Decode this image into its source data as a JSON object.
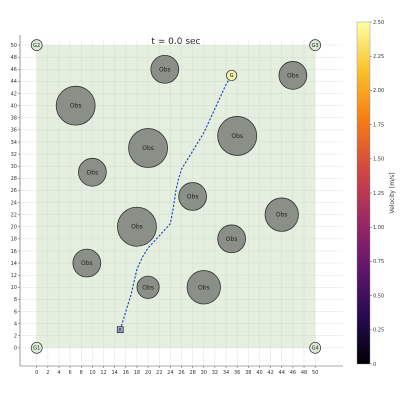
{
  "chart_data": {
    "type": "scatter",
    "title": "t = 0.0 sec",
    "xlabel": "",
    "ylabel": "",
    "xlim": [
      -3,
      55
    ],
    "ylim": [
      -3,
      52
    ],
    "xticks": [
      0,
      2,
      4,
      6,
      8,
      10,
      12,
      14,
      16,
      18,
      20,
      22,
      24,
      26,
      28,
      30,
      32,
      34,
      36,
      38,
      40,
      42,
      44,
      46,
      48,
      50
    ],
    "yticks": [
      0,
      2,
      4,
      6,
      8,
      10,
      12,
      14,
      16,
      18,
      20,
      22,
      24,
      26,
      28,
      30,
      32,
      34,
      36,
      38,
      40,
      42,
      44,
      46,
      48,
      50
    ],
    "grid": true,
    "region": {
      "x": [
        0,
        50
      ],
      "y": [
        0,
        50
      ],
      "color": "#e4efe0"
    },
    "obstacle_label": "Obs",
    "obstacles": [
      {
        "x": 23,
        "y": 46,
        "r": 2.5
      },
      {
        "x": 46,
        "y": 45,
        "r": 2.5
      },
      {
        "x": 7,
        "y": 40,
        "r": 3.5
      },
      {
        "x": 36,
        "y": 35,
        "r": 3.5
      },
      {
        "x": 20,
        "y": 33,
        "r": 3.5
      },
      {
        "x": 10,
        "y": 29,
        "r": 2.5
      },
      {
        "x": 28,
        "y": 25,
        "r": 2.5
      },
      {
        "x": 44,
        "y": 22,
        "r": 3.0
      },
      {
        "x": 18,
        "y": 20,
        "r": 3.5
      },
      {
        "x": 35,
        "y": 18,
        "r": 2.5
      },
      {
        "x": 9,
        "y": 14,
        "r": 2.5
      },
      {
        "x": 20,
        "y": 10,
        "r": 2.0
      },
      {
        "x": 30,
        "y": 10,
        "r": 3.0
      }
    ],
    "corners": [
      {
        "label": "G2",
        "x": 0,
        "y": 50
      },
      {
        "label": "G3",
        "x": 50,
        "y": 50
      },
      {
        "label": "G1",
        "x": 0,
        "y": 0
      },
      {
        "label": "G4",
        "x": 50,
        "y": 0
      }
    ],
    "goal": {
      "label": "G",
      "x": 35,
      "y": 45
    },
    "robot": {
      "label": "R",
      "x": 15,
      "y": 3
    },
    "path": {
      "color": "#1a3ccc",
      "x": [
        15,
        16,
        17,
        18,
        19,
        20,
        21,
        22,
        23,
        24,
        24.5,
        25,
        25.5,
        26,
        27,
        28,
        29,
        30,
        31,
        32,
        33,
        34,
        35
      ],
      "y": [
        3,
        6,
        9,
        13,
        15,
        16.5,
        17.5,
        18.5,
        19.5,
        20.5,
        23,
        26,
        28,
        29.5,
        31,
        32.5,
        34,
        35.5,
        37.5,
        39.5,
        41.5,
        43.5,
        45
      ]
    },
    "colorbar": {
      "label": "Velocity [m/s]",
      "range": [
        0,
        2.5
      ],
      "ticks": [
        "0",
        "0.25",
        "0.50",
        "0.75",
        "1.00",
        "1.25",
        "1.50",
        "1.75",
        "2.00",
        "2.25",
        "2.50"
      ],
      "colors": [
        "#000004",
        "#280b54",
        "#65156e",
        "#9f2a63",
        "#d44842",
        "#f57d15",
        "#fac228",
        "#fcffa4"
      ]
    }
  }
}
